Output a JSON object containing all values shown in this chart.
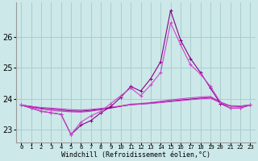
{
  "hours": [
    0,
    1,
    2,
    3,
    4,
    5,
    6,
    7,
    8,
    9,
    10,
    11,
    12,
    13,
    14,
    15,
    16,
    17,
    18,
    19,
    20,
    21,
    22,
    23
  ],
  "line_jagged1": [
    23.8,
    23.7,
    23.6,
    23.55,
    23.5,
    22.85,
    23.15,
    23.3,
    23.55,
    23.75,
    24.05,
    24.4,
    24.25,
    24.65,
    25.2,
    26.85,
    25.9,
    25.3,
    24.85,
    24.35,
    23.85,
    23.7,
    23.7,
    23.8
  ],
  "line_jagged2": [
    23.8,
    23.7,
    23.6,
    23.55,
    23.5,
    22.85,
    23.25,
    23.45,
    23.6,
    23.85,
    24.1,
    24.35,
    24.1,
    24.45,
    24.85,
    26.45,
    25.75,
    25.1,
    24.8,
    24.4,
    23.9,
    23.7,
    23.7,
    23.8
  ],
  "line_smooth1": [
    23.8,
    23.73,
    23.67,
    23.62,
    23.6,
    23.58,
    23.57,
    23.6,
    23.65,
    23.7,
    23.77,
    23.83,
    23.85,
    23.88,
    23.92,
    23.97,
    24.0,
    24.03,
    24.06,
    24.08,
    23.9,
    23.77,
    23.75,
    23.8
  ],
  "line_smooth2": [
    23.8,
    23.75,
    23.7,
    23.67,
    23.64,
    23.61,
    23.6,
    23.63,
    23.67,
    23.71,
    23.76,
    23.81,
    23.83,
    23.86,
    23.89,
    23.93,
    23.96,
    23.99,
    24.02,
    24.04,
    23.88,
    23.77,
    23.76,
    23.8
  ],
  "line_smooth3": [
    23.8,
    23.76,
    23.72,
    23.7,
    23.68,
    23.65,
    23.64,
    23.66,
    23.69,
    23.73,
    23.77,
    23.81,
    23.83,
    23.85,
    23.88,
    23.91,
    23.94,
    23.97,
    24.0,
    24.02,
    23.88,
    23.78,
    23.77,
    23.8
  ],
  "bg_color": "#cce8e8",
  "line_color_dark": "#880088",
  "line_color_bright": "#cc44cc",
  "grid_color": "#aacece",
  "ylim": [
    22.6,
    27.1
  ],
  "yticks": [
    23,
    24,
    25,
    26
  ],
  "xlabel": "Windchill (Refroidissement éolien,°C)"
}
